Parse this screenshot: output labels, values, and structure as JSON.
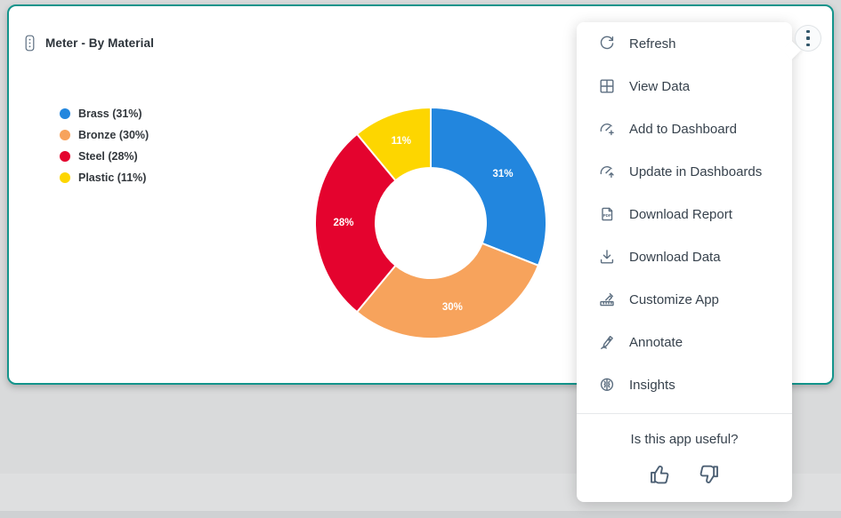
{
  "card": {
    "title": "Meter - By Material",
    "border_color": "#13948b"
  },
  "chart_data": {
    "type": "pie",
    "subtype": "donut",
    "title": "Meter - By Material",
    "categories": [
      "Brass",
      "Bronze",
      "Steel",
      "Plastic"
    ],
    "values": [
      31,
      30,
      28,
      11
    ],
    "colors": [
      "#2286de",
      "#f7a35c",
      "#e4032e",
      "#fdd600"
    ],
    "slice_labels": [
      "31%",
      "30%",
      "28%",
      "11%"
    ],
    "legend_labels": [
      "Brass (31%)",
      "Bronze (30%)",
      "Steel (28%)",
      "Plastic (11%)"
    ],
    "legend_position": "left",
    "donut_hole_ratio": 0.48,
    "slice_label_color": "#ffffff"
  },
  "kebab_menu": {
    "icon": "kebab-vertical-icon"
  },
  "menu": {
    "items": [
      {
        "icon": "refresh-icon",
        "label": "Refresh"
      },
      {
        "icon": "view-data-icon",
        "label": "View Data"
      },
      {
        "icon": "add-to-dashboard-icon",
        "label": "Add to Dashboard"
      },
      {
        "icon": "update-in-dashboards-icon",
        "label": "Update in Dashboards"
      },
      {
        "icon": "download-report-icon",
        "label": "Download Report"
      },
      {
        "icon": "download-data-icon",
        "label": "Download Data"
      },
      {
        "icon": "customize-app-icon",
        "label": "Customize App"
      },
      {
        "icon": "annotate-icon",
        "label": "Annotate"
      },
      {
        "icon": "insights-icon",
        "label": "Insights"
      }
    ],
    "feedback": {
      "question": "Is this app useful?",
      "thumbs_up_icon": "thumbs-up-icon",
      "thumbs_down_icon": "thumbs-down-icon"
    }
  }
}
